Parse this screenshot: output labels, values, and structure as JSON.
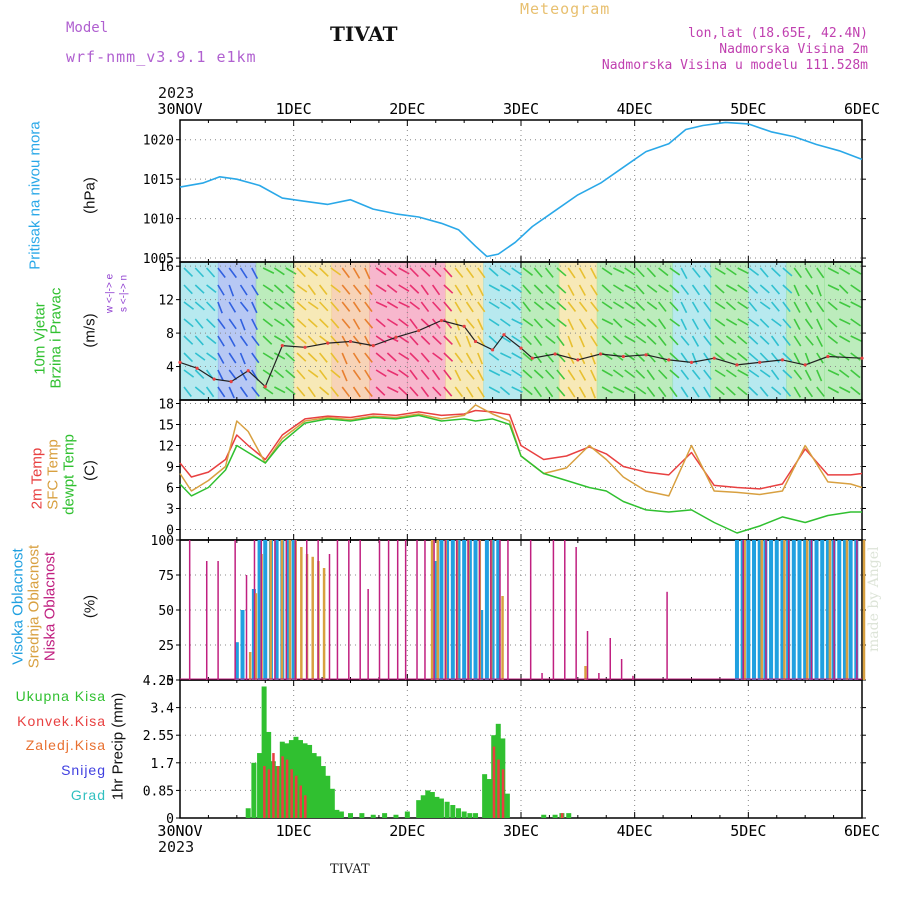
{
  "header": {
    "model_label": "Model",
    "model_name": "wrf-nmm_v3.9.1 e1km",
    "station_title": "TIVAT",
    "meteogram_label": "Meteogram",
    "lonlat": "lon,lat (18.65E, 42.4N)",
    "altitude": "Nadmorska Visina 2m",
    "model_altitude": "Nadmorska Visina u modelu 111.528m",
    "year_top": "2023",
    "year_bottom": "2023",
    "footer_station": "TIVAT",
    "watermark": "made by Angel"
  },
  "time_axis": {
    "labels": [
      "30NOV",
      "1DEC",
      "2DEC",
      "3DEC",
      "4DEC",
      "5DEC",
      "6DEC"
    ]
  },
  "panel_labels": {
    "pressure": [
      "Pritisak na nivou mora",
      "(hPa)"
    ],
    "wind": [
      "10m Vjetar",
      "Brzina i Pravac",
      "(m/s)"
    ],
    "compass": "w <-|-> e",
    "compass2": "s <-|-> n",
    "temp": [
      "2m Temp",
      "SFC Temp",
      "dewpt Temp",
      "(C)"
    ],
    "cloud": [
      "Visoka Oblacnost",
      "Srednja Oblacnost",
      "Niska Oblacnost",
      "(%)"
    ],
    "precip": [
      "Ukupna Kisa",
      "Konvek.Kisa",
      "Zaledj.Kisa",
      "Snijeg",
      "Grad",
      "1hr Precip (mm)"
    ]
  },
  "colors": {
    "pressure": "#2aa8e8",
    "wind_speed": "#222222",
    "temp_2m": "#e84040",
    "temp_sfc": "#d8a040",
    "temp_dewpt": "#30c030",
    "cloud_high": "#20a0e0",
    "cloud_mid": "#d8a040",
    "cloud_low": "#c02080",
    "precip_total": "#30c030",
    "precip_conv": "#e84040",
    "precip_frz": "#e87030",
    "snow": "#4040e0",
    "hail": "#30c0c0"
  },
  "chart_data": [
    {
      "type": "line",
      "panel": "pressure",
      "ylabel": "(hPa)",
      "ylim": [
        1004.5,
        1022.5
      ],
      "yticks": [
        1005,
        1010,
        1015,
        1020
      ],
      "x_unit": "days since 30NOV 00Z",
      "xlim": [
        0,
        6
      ],
      "series": [
        {
          "name": "Pritisak na nivou mora",
          "x": [
            0,
            0.2,
            0.35,
            0.5,
            0.7,
            0.9,
            1.1,
            1.3,
            1.5,
            1.7,
            1.9,
            2.1,
            2.3,
            2.45,
            2.6,
            2.7,
            2.8,
            2.95,
            3.1,
            3.3,
            3.5,
            3.7,
            3.9,
            4.1,
            4.3,
            4.45,
            4.6,
            4.8,
            5.0,
            5.2,
            5.4,
            5.6,
            5.8,
            6.0
          ],
          "y": [
            1014.0,
            1014.5,
            1015.3,
            1015.0,
            1014.2,
            1012.6,
            1012.2,
            1011.8,
            1012.4,
            1011.2,
            1010.6,
            1010.2,
            1009.4,
            1008.6,
            1006.5,
            1005.2,
            1005.5,
            1007.0,
            1009.0,
            1011.0,
            1013.0,
            1014.5,
            1016.5,
            1018.5,
            1019.5,
            1021.3,
            1021.8,
            1022.2,
            1022.0,
            1021.0,
            1020.4,
            1019.4,
            1018.6,
            1017.5
          ]
        }
      ]
    },
    {
      "type": "line",
      "panel": "wind",
      "ylabel": "(m/s)",
      "ylim": [
        0,
        16.5
      ],
      "yticks": [
        4,
        8,
        12,
        16
      ],
      "xlim": [
        0,
        6
      ],
      "series": [
        {
          "name": "wind speed",
          "x": [
            0,
            0.15,
            0.3,
            0.45,
            0.6,
            0.75,
            0.9,
            1.1,
            1.3,
            1.5,
            1.7,
            1.9,
            2.1,
            2.3,
            2.5,
            2.6,
            2.75,
            2.85,
            3.0,
            3.1,
            3.3,
            3.5,
            3.7,
            3.9,
            4.1,
            4.3,
            4.5,
            4.7,
            4.9,
            5.1,
            5.3,
            5.5,
            5.7,
            6.0
          ],
          "y": [
            4.5,
            3.8,
            2.5,
            2.2,
            3.5,
            1.6,
            6.5,
            6.3,
            6.8,
            7.0,
            6.5,
            7.5,
            8.3,
            9.5,
            8.8,
            7.0,
            6.0,
            7.8,
            6.2,
            5.0,
            5.5,
            4.8,
            5.5,
            5.2,
            5.4,
            4.8,
            4.5,
            5.0,
            4.2,
            4.5,
            4.8,
            4.2,
            5.2,
            5.0
          ]
        }
      ]
    },
    {
      "type": "line",
      "panel": "temperature",
      "ylabel": "(C)",
      "ylim": [
        -1.5,
        18.5
      ],
      "yticks": [
        0,
        3,
        6,
        9,
        12,
        15,
        18
      ],
      "xlim": [
        0,
        6
      ],
      "series": [
        {
          "name": "2m Temp",
          "x": [
            0,
            0.1,
            0.25,
            0.4,
            0.5,
            0.6,
            0.75,
            0.9,
            1.1,
            1.3,
            1.5,
            1.7,
            1.9,
            2.1,
            2.3,
            2.5,
            2.6,
            2.75,
            2.9,
            3.0,
            3.2,
            3.4,
            3.6,
            3.75,
            3.9,
            4.1,
            4.3,
            4.5,
            4.7,
            4.9,
            5.1,
            5.3,
            5.5,
            5.7,
            5.9,
            6.0
          ],
          "y": [
            9.5,
            7.5,
            8.2,
            10.0,
            13.5,
            12.0,
            10.0,
            13.5,
            15.8,
            16.2,
            16.0,
            16.5,
            16.3,
            16.8,
            16.3,
            16.5,
            17.0,
            16.8,
            16.4,
            12.0,
            10.0,
            10.5,
            11.8,
            10.8,
            9.0,
            8.2,
            7.8,
            11.0,
            6.3,
            6.0,
            5.8,
            6.5,
            11.5,
            7.8,
            7.8,
            8.0
          ]
        },
        {
          "name": "SFC Temp",
          "x": [
            0,
            0.1,
            0.25,
            0.4,
            0.5,
            0.6,
            0.75,
            0.9,
            1.1,
            1.3,
            1.5,
            1.7,
            1.9,
            2.1,
            2.3,
            2.5,
            2.6,
            2.75,
            2.9,
            3.0,
            3.2,
            3.4,
            3.6,
            3.75,
            3.9,
            4.1,
            4.3,
            4.5,
            4.7,
            4.9,
            5.1,
            5.3,
            5.5,
            5.7,
            5.9,
            6.0
          ],
          "y": [
            8.0,
            5.5,
            7.0,
            9.0,
            15.5,
            14.0,
            9.5,
            13.0,
            15.5,
            16.0,
            15.7,
            16.2,
            16.0,
            16.5,
            15.8,
            16.3,
            17.8,
            16.5,
            15.5,
            10.5,
            8.0,
            8.8,
            12.0,
            10.0,
            7.5,
            5.5,
            4.8,
            12.0,
            5.5,
            5.3,
            5.0,
            5.5,
            12.0,
            6.8,
            6.5,
            6.0
          ]
        },
        {
          "name": "dewpt Temp",
          "x": [
            0,
            0.1,
            0.25,
            0.4,
            0.5,
            0.6,
            0.75,
            0.9,
            1.1,
            1.3,
            1.5,
            1.7,
            1.9,
            2.1,
            2.3,
            2.5,
            2.6,
            2.75,
            2.9,
            3.0,
            3.2,
            3.4,
            3.6,
            3.75,
            3.9,
            4.1,
            4.3,
            4.5,
            4.7,
            4.9,
            5.1,
            5.3,
            5.5,
            5.7,
            5.9,
            6.0
          ],
          "y": [
            6.5,
            4.8,
            6.0,
            8.5,
            12.0,
            11.0,
            9.5,
            12.5,
            15.2,
            15.8,
            15.5,
            16.0,
            15.8,
            16.3,
            15.5,
            15.8,
            15.5,
            15.8,
            15.0,
            10.5,
            8.0,
            7.0,
            6.0,
            5.5,
            4.0,
            2.8,
            2.5,
            2.8,
            1.0,
            -0.5,
            0.5,
            1.8,
            1.0,
            2.0,
            2.5,
            2.5
          ]
        }
      ]
    },
    {
      "type": "bar",
      "panel": "cloud",
      "ylabel": "(%)",
      "ylim": [
        0,
        100
      ],
      "yticks": [
        0,
        25,
        50,
        75,
        100
      ],
      "xlim": [
        0,
        6
      ],
      "series": [
        {
          "name": "Visoka Oblacnost",
          "x": [
            0.5,
            0.55,
            0.65,
            0.7,
            0.75,
            0.8,
            0.85,
            0.9,
            0.95,
            1.0,
            2.25,
            2.3,
            2.35,
            2.4,
            2.45,
            2.5,
            2.55,
            2.6,
            2.65,
            2.7,
            2.75,
            2.8,
            4.9,
            4.95,
            5.0,
            5.05,
            5.1,
            5.15,
            5.2,
            5.25,
            5.3,
            5.35,
            5.4,
            5.45,
            5.5,
            5.55,
            5.6,
            5.65,
            5.7,
            5.75,
            5.8,
            5.85,
            5.9,
            5.95
          ],
          "y": [
            27,
            50,
            65,
            100,
            100,
            100,
            100,
            100,
            100,
            100,
            85,
            100,
            100,
            100,
            100,
            100,
            100,
            100,
            50,
            100,
            100,
            100,
            100,
            100,
            100,
            100,
            100,
            100,
            100,
            100,
            100,
            100,
            100,
            100,
            100,
            100,
            100,
            100,
            100,
            100,
            100,
            100,
            100,
            100
          ]
        },
        {
          "name": "Srednja Oblacnost",
          "x": [
            0.6,
            0.65,
            0.7,
            0.78,
            0.88,
            0.95,
            1.0,
            1.05,
            1.1,
            1.15,
            1.2,
            1.25,
            2.2,
            2.25,
            2.32,
            2.42,
            2.52,
            2.62,
            2.72,
            2.82,
            3.55,
            4.95,
            5.1,
            5.3,
            5.5,
            5.7,
            5.85,
            6.0
          ],
          "y": [
            20,
            62,
            90,
            100,
            100,
            100,
            100,
            95,
            90,
            88,
            85,
            80,
            100,
            100,
            100,
            100,
            100,
            100,
            100,
            60,
            10,
            100,
            100,
            100,
            100,
            100,
            100,
            100
          ]
        },
        {
          "name": "Niska Oblacnost",
          "x": [
            0.05,
            0.2,
            0.3,
            0.45,
            0.55,
            0.62,
            0.68,
            0.8,
            0.9,
            0.98,
            1.08,
            1.18,
            1.28,
            1.35,
            1.45,
            1.55,
            1.62,
            1.72,
            1.8,
            1.88,
            1.95,
            2.05,
            2.12,
            2.2,
            2.3,
            2.4,
            2.5,
            2.6,
            2.7,
            2.78,
            2.85,
            3.05,
            3.15,
            3.25,
            3.35,
            3.45,
            3.55,
            3.65,
            3.75,
            3.85,
            3.95,
            4.25,
            4.92,
            5.12,
            5.32,
            5.52,
            5.72,
            5.92
          ],
          "y": [
            100,
            85,
            85,
            100,
            75,
            100,
            100,
            100,
            100,
            100,
            100,
            100,
            90,
            100,
            100,
            100,
            65,
            100,
            100,
            100,
            100,
            100,
            100,
            100,
            100,
            100,
            100,
            100,
            100,
            100,
            100,
            100,
            5,
            100,
            100,
            95,
            35,
            5,
            30,
            15,
            3,
            63,
            100,
            100,
            100,
            100,
            100,
            100
          ]
        }
      ]
    },
    {
      "type": "bar",
      "panel": "precip",
      "ylabel": "1hr Precip (mm)",
      "ylim": [
        0,
        4.25
      ],
      "yticks": [
        0,
        0.85,
        1.7,
        2.55,
        3.4,
        4.25
      ],
      "xlim": [
        0,
        6
      ],
      "series": [
        {
          "name": "Ukupna Kisa",
          "x": [
            0.6,
            0.65,
            0.7,
            0.74,
            0.78,
            0.82,
            0.86,
            0.9,
            0.94,
            0.98,
            1.02,
            1.06,
            1.1,
            1.14,
            1.18,
            1.22,
            1.26,
            1.3,
            1.34,
            1.38,
            1.42,
            1.5,
            1.6,
            1.7,
            1.8,
            1.9,
            2.0,
            2.1,
            2.14,
            2.18,
            2.22,
            2.26,
            2.3,
            2.35,
            2.4,
            2.45,
            2.5,
            2.55,
            2.6,
            2.68,
            2.72,
            2.76,
            2.8,
            2.84,
            2.88,
            3.2,
            3.3,
            3.36,
            3.42
          ],
          "y": [
            0.3,
            1.7,
            2.0,
            4.05,
            2.65,
            1.75,
            1.6,
            2.35,
            2.3,
            2.4,
            2.5,
            2.4,
            2.3,
            2.25,
            2.0,
            1.9,
            1.6,
            1.3,
            0.9,
            0.25,
            0.2,
            0.15,
            0.15,
            0.1,
            0.15,
            0.1,
            0.2,
            0.55,
            0.7,
            0.85,
            0.8,
            0.65,
            0.6,
            0.5,
            0.4,
            0.3,
            0.2,
            0.15,
            0.15,
            1.35,
            1.2,
            2.55,
            2.9,
            2.45,
            0.75,
            0.1,
            0.1,
            0.15,
            0.15
          ]
        },
        {
          "name": "Konvek.Kisa",
          "x": [
            0.74,
            0.78,
            0.82,
            0.86,
            0.9,
            0.94,
            0.98,
            1.02,
            1.06,
            1.1,
            2.76,
            2.8,
            2.84,
            3.36
          ],
          "y": [
            1.6,
            1.5,
            2.0,
            1.6,
            1.9,
            1.8,
            1.5,
            1.3,
            1.0,
            0.7,
            2.2,
            1.8,
            1.5,
            0.15
          ]
        }
      ]
    }
  ]
}
